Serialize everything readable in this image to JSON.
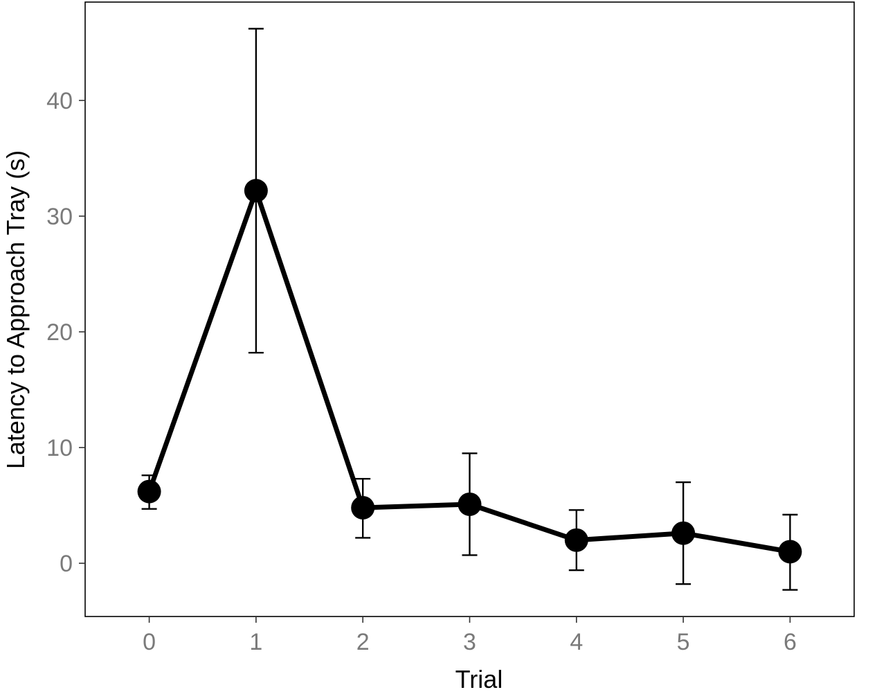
{
  "chart_data": {
    "type": "line",
    "title": "",
    "xlabel": "Trial",
    "ylabel": "Latency to Approach Tray (s)",
    "x": [
      0,
      1,
      2,
      3,
      4,
      5,
      6
    ],
    "x_ticks": [
      0,
      1,
      2,
      3,
      4,
      5,
      6
    ],
    "y_ticks": [
      0,
      10,
      20,
      30,
      40
    ],
    "xlim": [
      -0.6,
      6.6
    ],
    "ylim": [
      -4.6,
      48.5
    ],
    "grid": false,
    "legend": "none",
    "series": [
      {
        "values": [
          6.2,
          32.2,
          4.8,
          5.1,
          2.0,
          2.6,
          1.0
        ],
        "error_lower": [
          4.7,
          18.2,
          2.2,
          0.7,
          -0.6,
          -1.8,
          -2.3
        ],
        "error_upper": [
          7.6,
          46.2,
          7.3,
          9.5,
          4.6,
          7.0,
          4.2
        ],
        "color": "#000000"
      }
    ]
  }
}
